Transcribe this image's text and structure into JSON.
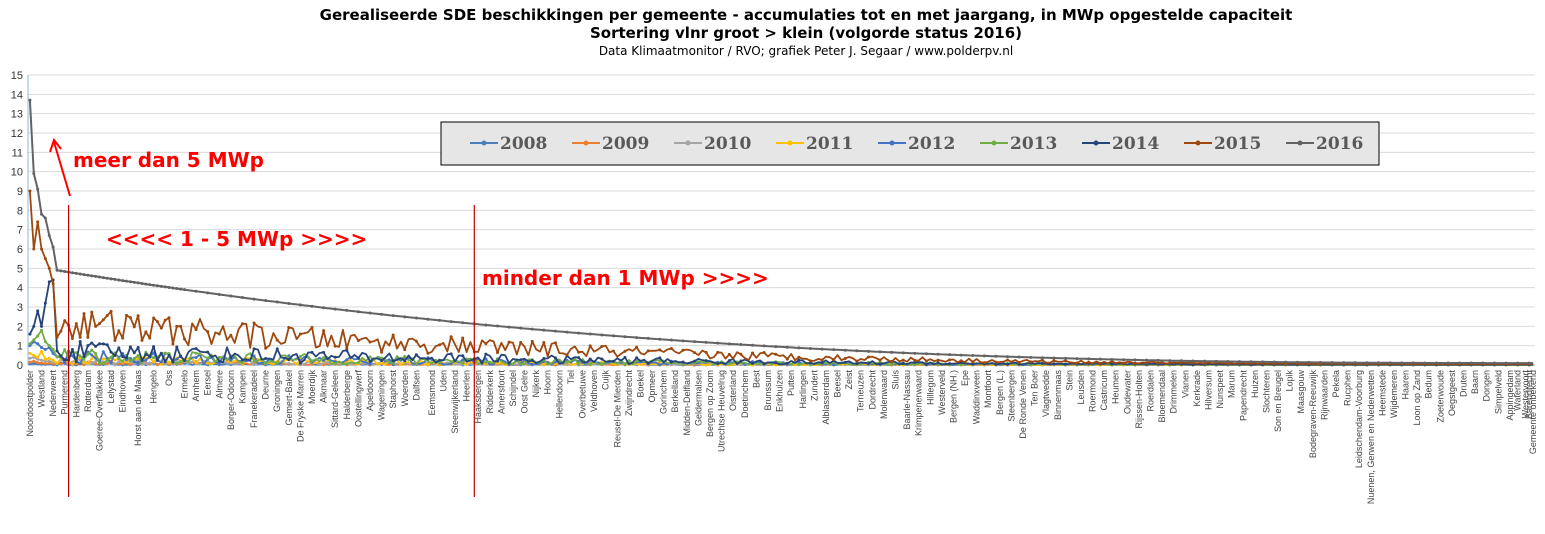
{
  "chart_data": {
    "type": "line",
    "title": "Gerealiseerde SDE beschikkingen per gemeente - accumulaties tot en met jaargang, in MWp opgestelde capaciteit",
    "subtitle": "Sortering vlnr groot > klein (volgorde status 2016)",
    "source": "Data Klimaatmonitor / RVO; grafiek Peter J. Segaar / www.polderpv.nl",
    "xlabel": "",
    "ylabel": "",
    "ylim": [
      0,
      15
    ],
    "yticks": [
      "0",
      "1",
      "2",
      "3",
      "4",
      "5",
      "6",
      "7",
      "8",
      "9",
      "10",
      "11",
      "12",
      "13",
      "14",
      "15"
    ],
    "grid": true,
    "legend_position": "top-right",
    "x_count": 390,
    "x_labels": [
      {
        "i": 0,
        "label": "Noordoostpolder"
      },
      {
        "i": 3,
        "label": "Westland"
      },
      {
        "i": 6,
        "label": "Nederweert"
      },
      {
        "i": 9,
        "label": "Purmerend"
      },
      {
        "i": 12,
        "label": "Hardenberg"
      },
      {
        "i": 15,
        "label": "Rotterdam"
      },
      {
        "i": 18,
        "label": "Goeree-Overflakkee"
      },
      {
        "i": 21,
        "label": "Lelystad"
      },
      {
        "i": 24,
        "label": "Eindhoven"
      },
      {
        "i": 28,
        "label": "Horst aan de Maas"
      },
      {
        "i": 32,
        "label": "Hengelo"
      },
      {
        "i": 36,
        "label": "Oss"
      },
      {
        "i": 40,
        "label": "Ermelo"
      },
      {
        "i": 43,
        "label": "Arnhem"
      },
      {
        "i": 46,
        "label": "Eersel"
      },
      {
        "i": 49,
        "label": "Almere"
      },
      {
        "i": 52,
        "label": "Borger-Odoorn"
      },
      {
        "i": 55,
        "label": "Kampen"
      },
      {
        "i": 58,
        "label": "Franekeradeel"
      },
      {
        "i": 61,
        "label": "Deurne"
      },
      {
        "i": 64,
        "label": "Groningen"
      },
      {
        "i": 67,
        "label": "Gemert-Bakel"
      },
      {
        "i": 70,
        "label": "De Fryske Marren"
      },
      {
        "i": 73,
        "label": "Moerdijk"
      },
      {
        "i": 76,
        "label": "Alkmaar"
      },
      {
        "i": 79,
        "label": "Sittard-Geleen"
      },
      {
        "i": 82,
        "label": "Halderberge"
      },
      {
        "i": 85,
        "label": "Oostellingwerf"
      },
      {
        "i": 88,
        "label": "Apeldoorn"
      },
      {
        "i": 91,
        "label": "Wageningen"
      },
      {
        "i": 94,
        "label": "Staphorst"
      },
      {
        "i": 97,
        "label": "Woerden"
      },
      {
        "i": 100,
        "label": "Dalfsen"
      },
      {
        "i": 104,
        "label": "Eemsmond"
      },
      {
        "i": 107,
        "label": "Uden"
      },
      {
        "i": 110,
        "label": "Steenwijkerland"
      },
      {
        "i": 113,
        "label": "Heerlen"
      },
      {
        "i": 116,
        "label": "Haaksbergen"
      },
      {
        "i": 119,
        "label": "Ridderkerk"
      },
      {
        "i": 122,
        "label": "Amersfoort"
      },
      {
        "i": 125,
        "label": "Schijndel"
      },
      {
        "i": 128,
        "label": "Oost Gelre"
      },
      {
        "i": 131,
        "label": "Nijkerk"
      },
      {
        "i": 134,
        "label": "Hoorn"
      },
      {
        "i": 137,
        "label": "Hellendoorn"
      },
      {
        "i": 140,
        "label": "Tiel"
      },
      {
        "i": 143,
        "label": "Overbetuwe"
      },
      {
        "i": 146,
        "label": "Veldhoven"
      },
      {
        "i": 149,
        "label": "Cuijk"
      },
      {
        "i": 152,
        "label": "Reusel-De Mierden"
      },
      {
        "i": 155,
        "label": "Zwijndrecht"
      },
      {
        "i": 158,
        "label": "Boekel"
      },
      {
        "i": 161,
        "label": "Opmeer"
      },
      {
        "i": 164,
        "label": "Gorinchem"
      },
      {
        "i": 167,
        "label": "Berkelland"
      },
      {
        "i": 170,
        "label": "Midden-Delfland"
      },
      {
        "i": 173,
        "label": "Geldermalsen"
      },
      {
        "i": 176,
        "label": "Bergen op Zoom"
      },
      {
        "i": 179,
        "label": "Utrechtse Heuvelrug"
      },
      {
        "i": 182,
        "label": "Oisterland"
      },
      {
        "i": 185,
        "label": "Doetinchem"
      },
      {
        "i": 188,
        "label": "Best"
      },
      {
        "i": 191,
        "label": "Brunssum"
      },
      {
        "i": 194,
        "label": "Enkhuizen"
      },
      {
        "i": 197,
        "label": "Putten"
      },
      {
        "i": 200,
        "label": "Harlingen"
      },
      {
        "i": 203,
        "label": "Zundert"
      },
      {
        "i": 206,
        "label": "Alblasserdam"
      },
      {
        "i": 209,
        "label": "Beesel"
      },
      {
        "i": 212,
        "label": "Zeist"
      },
      {
        "i": 215,
        "label": "Terneuzen"
      },
      {
        "i": 218,
        "label": "Dordrecht"
      },
      {
        "i": 221,
        "label": "Molenwaard"
      },
      {
        "i": 224,
        "label": "Sluis"
      },
      {
        "i": 227,
        "label": "Baarle-Nassau"
      },
      {
        "i": 230,
        "label": "Krimpenerwaard"
      },
      {
        "i": 233,
        "label": "Hillegom"
      },
      {
        "i": 236,
        "label": "Westerveld"
      },
      {
        "i": 239,
        "label": "Bergen (NH.)"
      },
      {
        "i": 242,
        "label": "Epe"
      },
      {
        "i": 245,
        "label": "Waddinxveen"
      },
      {
        "i": 248,
        "label": "Montfoort"
      },
      {
        "i": 251,
        "label": "Bergen (L.)"
      },
      {
        "i": 254,
        "label": "Steenbergen"
      },
      {
        "i": 257,
        "label": "De Ronde Venen"
      },
      {
        "i": 260,
        "label": "Ten Boer"
      },
      {
        "i": 263,
        "label": "Vlagtwedde"
      },
      {
        "i": 266,
        "label": "Binnenmaas"
      },
      {
        "i": 269,
        "label": "Stein"
      },
      {
        "i": 272,
        "label": "Leusden"
      },
      {
        "i": 275,
        "label": "Roermond"
      },
      {
        "i": 278,
        "label": "Castricum"
      },
      {
        "i": 281,
        "label": "Heumen"
      },
      {
        "i": 284,
        "label": "Oudewater"
      },
      {
        "i": 287,
        "label": "Rijssen-Holten"
      },
      {
        "i": 290,
        "label": "Roerdalen"
      },
      {
        "i": 293,
        "label": "Bloemendaal"
      },
      {
        "i": 296,
        "label": "Drimmelen"
      },
      {
        "i": 299,
        "label": "Vianen"
      },
      {
        "i": 302,
        "label": "Kerkrade"
      },
      {
        "i": 305,
        "label": "Hilversum"
      },
      {
        "i": 308,
        "label": "Nunspeet"
      },
      {
        "i": 311,
        "label": "Marum"
      },
      {
        "i": 314,
        "label": "Papendrecht"
      },
      {
        "i": 317,
        "label": "Huizen"
      },
      {
        "i": 320,
        "label": "Slochteren"
      },
      {
        "i": 323,
        "label": "Son en Breugel"
      },
      {
        "i": 326,
        "label": "Lopik"
      },
      {
        "i": 329,
        "label": "Maasgouw"
      },
      {
        "i": 332,
        "label": "Bodegraven-Reeuwijk"
      },
      {
        "i": 335,
        "label": "Rijnwaarden"
      },
      {
        "i": 338,
        "label": "Pekela"
      },
      {
        "i": 341,
        "label": "Rucphen"
      },
      {
        "i": 344,
        "label": "Leidschendam-Voorburg"
      },
      {
        "i": 347,
        "label": "Nuenen, Gerwen en Nederwetten"
      },
      {
        "i": 350,
        "label": "Heemstede"
      },
      {
        "i": 353,
        "label": "Wijdemeren"
      },
      {
        "i": 356,
        "label": "Haaren"
      },
      {
        "i": 359,
        "label": "Loon op Zand"
      },
      {
        "i": 362,
        "label": "Bedum"
      },
      {
        "i": 365,
        "label": "Zoeterwoude"
      },
      {
        "i": 368,
        "label": "Oegstgeest"
      },
      {
        "i": 371,
        "label": "Druten"
      },
      {
        "i": 374,
        "label": "Baarn"
      },
      {
        "i": 377,
        "label": "Dongen"
      },
      {
        "i": 380,
        "label": "Simpelveld"
      },
      {
        "i": 383,
        "label": "Appingedam"
      },
      {
        "i": 385,
        "label": "Waterland"
      },
      {
        "i": 387,
        "label": "Westervoort"
      },
      {
        "i": 388,
        "label": "Barendrecht"
      },
      {
        "i": 389,
        "label": "Gemeente onbekend"
      }
    ],
    "series": [
      {
        "name": "2008",
        "color": "#4a7ebb",
        "marker": "diamond",
        "profile": {
          "head": [
            0.05,
            0.08,
            0.06,
            0.04,
            0.03,
            0.05,
            0.02
          ],
          "base": 0.04,
          "tail_end": 0.0,
          "noise": 0.06
        }
      },
      {
        "name": "2009",
        "color": "#ed7d31",
        "marker": "square",
        "profile": {
          "head": [
            0.15,
            0.2,
            0.12,
            0.1,
            0.08,
            0.1,
            0.05
          ],
          "base": 0.08,
          "tail_end": 0.0,
          "noise": 0.1
        }
      },
      {
        "name": "2010",
        "color": "#a5a5a5",
        "marker": "triangle",
        "profile": {
          "head": [
            0.35,
            0.4,
            0.3,
            0.25,
            0.2,
            0.2,
            0.15
          ],
          "base": 0.12,
          "tail_end": 0.0,
          "noise": 0.15
        }
      },
      {
        "name": "2011",
        "color": "#ffc000",
        "marker": "x",
        "profile": {
          "head": [
            0.6,
            0.5,
            0.4,
            0.7,
            0.3,
            0.35,
            0.25
          ],
          "base": 0.18,
          "tail_end": 0.0,
          "noise": 0.25
        }
      },
      {
        "name": "2012",
        "color": "#4472c4",
        "marker": "star",
        "profile": {
          "head": [
            1.0,
            1.2,
            1.1,
            0.9,
            0.8,
            0.9,
            0.6
          ],
          "base": 0.3,
          "tail_end": 0.01,
          "noise": 0.35
        }
      },
      {
        "name": "2013",
        "color": "#70ad47",
        "marker": "circle",
        "profile": {
          "head": [
            1.1,
            1.3,
            1.5,
            1.8,
            1.2,
            1.0,
            0.8
          ],
          "base": 0.35,
          "tail_end": 0.01,
          "noise": 0.4
        }
      },
      {
        "name": "2014",
        "color": "#264478",
        "marker": "plus",
        "profile": {
          "head": [
            1.6,
            2.0,
            2.8,
            2.0,
            3.2,
            4.3,
            4.4
          ],
          "base": 0.55,
          "tail_end": 0.02,
          "noise": 0.55
        }
      },
      {
        "name": "2015",
        "color": "#9e480e",
        "marker": "dash",
        "profile": {
          "head": [
            9.0,
            6.0,
            7.4,
            6.0,
            5.5,
            5.0,
            4.2
          ],
          "base": 1.9,
          "tail_end": 0.05,
          "noise": 0.9
        }
      },
      {
        "name": "2016",
        "color": "#636363",
        "marker": "dash",
        "profile": {
          "head": [
            13.7,
            9.9,
            9.1,
            7.8,
            7.6,
            6.7,
            6.1
          ],
          "base": 4.9,
          "tail_end": 0.1,
          "noise": 0.0
        }
      }
    ],
    "annotations": [
      {
        "text": "meer dan 5 MWp"
      },
      {
        "text": "<<<<  1 - 5 MWp  >>>>"
      },
      {
        "text": "minder dan 1 MWp  >>>>"
      }
    ],
    "dividers_at_index": [
      10,
      115
    ]
  }
}
